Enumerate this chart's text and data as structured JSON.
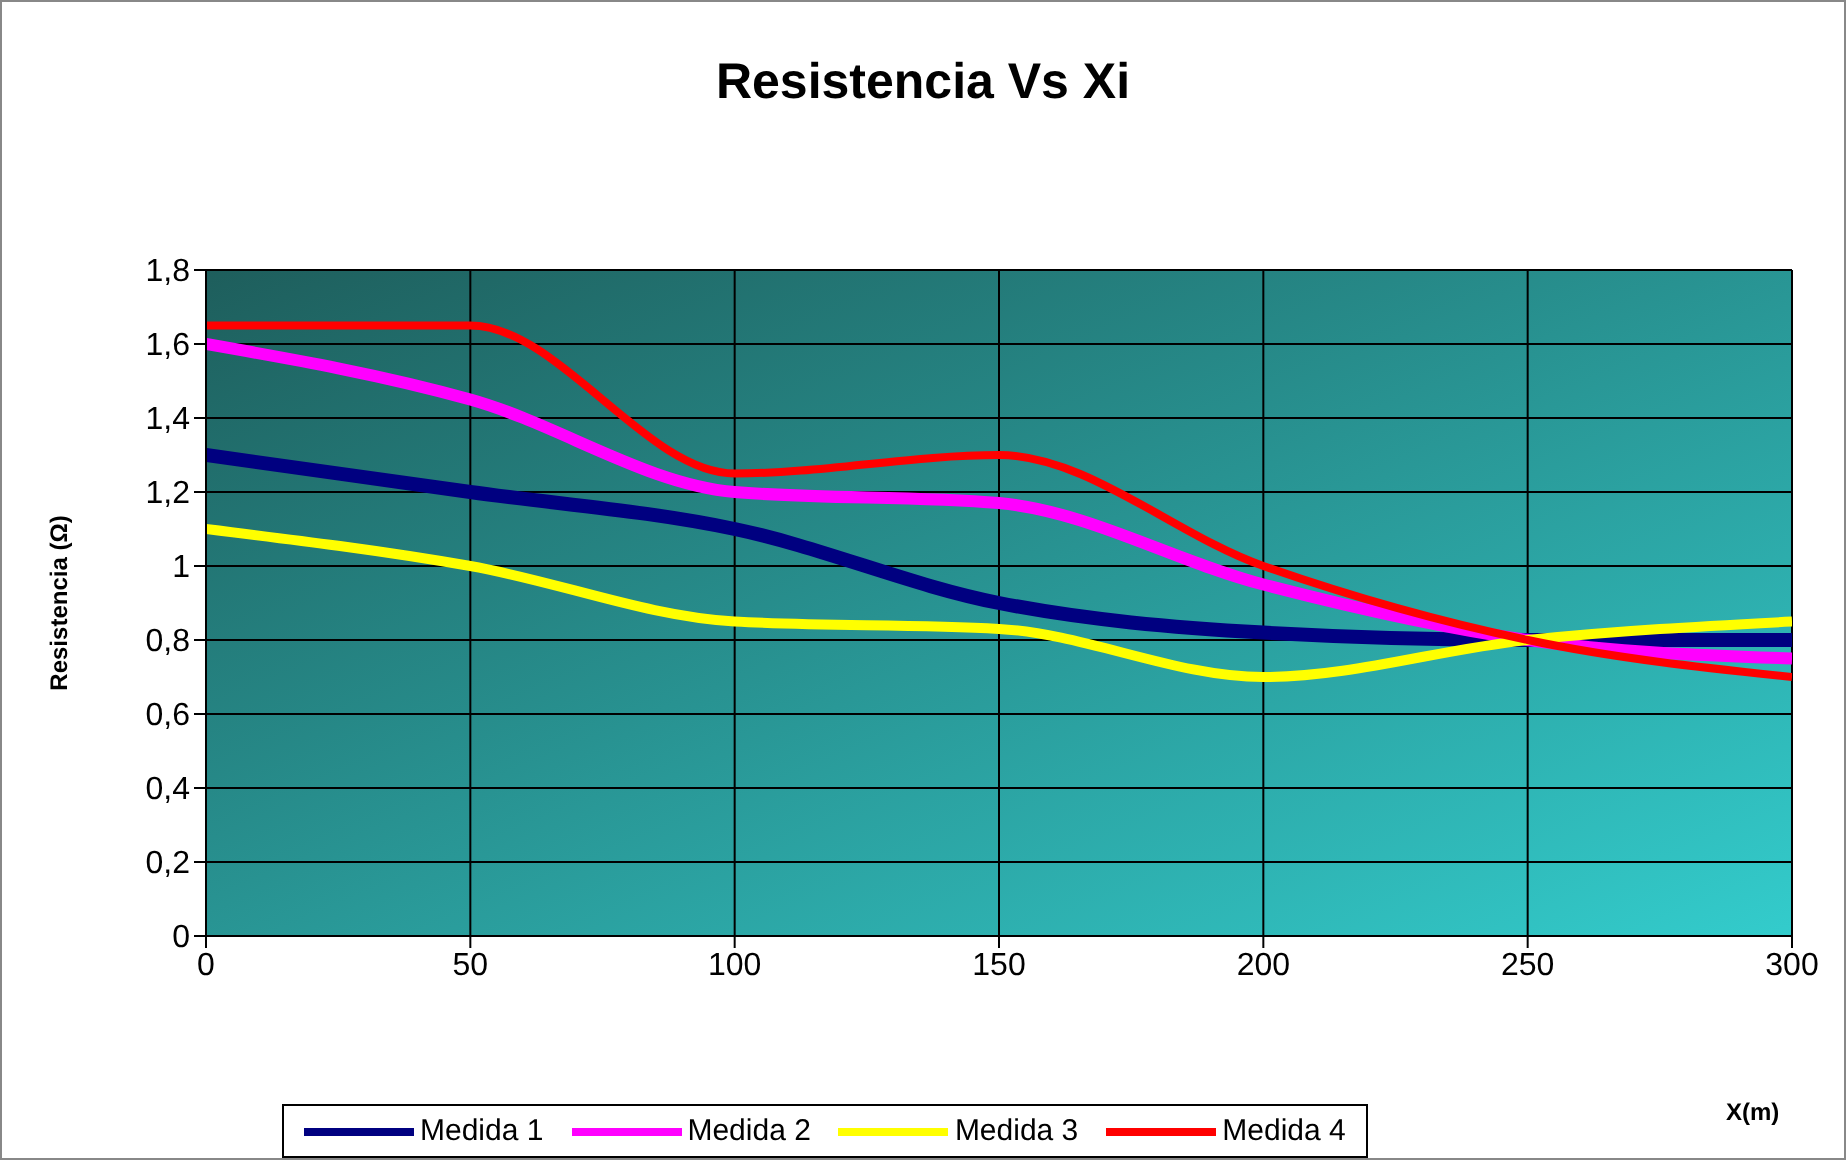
{
  "chart_data": {
    "type": "line",
    "title": "Resistencia Vs Xi",
    "xlabel": "X(m)",
    "ylabel": "Resistencia (Ω)",
    "x": [
      0,
      50,
      100,
      150,
      200,
      250,
      300
    ],
    "series": [
      {
        "name": "Medida 1",
        "color": "#000080",
        "values": [
          1.3,
          1.2,
          1.1,
          0.9,
          0.82,
          0.8,
          0.8
        ]
      },
      {
        "name": "Medida 2",
        "color": "#ff00ff",
        "values": [
          1.6,
          1.45,
          1.2,
          1.17,
          0.95,
          0.8,
          0.75
        ]
      },
      {
        "name": "Medida 3",
        "color": "#ffff00",
        "values": [
          1.1,
          1.0,
          0.85,
          0.83,
          0.7,
          0.8,
          0.85
        ]
      },
      {
        "name": "Medida 4",
        "color": "#ff0000",
        "values": [
          1.65,
          1.65,
          1.25,
          1.3,
          1.0,
          0.8,
          0.7
        ]
      }
    ],
    "xlim": [
      0,
      300
    ],
    "xticks": [
      0,
      50,
      100,
      150,
      200,
      250,
      300
    ],
    "ylim": [
      0,
      1.8
    ],
    "yticks": [
      0,
      {
        "value": 0.2,
        "label": "0,2"
      },
      {
        "value": 0.4,
        "label": "0,4"
      },
      {
        "value": 0.6,
        "label": "0,6"
      },
      {
        "value": 0.8,
        "label": "0,8"
      },
      1,
      {
        "value": 1.2,
        "label": "1,2"
      },
      {
        "value": 1.4,
        "label": "1,4"
      },
      {
        "value": 1.6,
        "label": "1,6"
      },
      {
        "value": 1.8,
        "label": "1,8"
      }
    ],
    "grid": true,
    "legend": "bottom",
    "marker": "none",
    "line_style": "solid"
  }
}
